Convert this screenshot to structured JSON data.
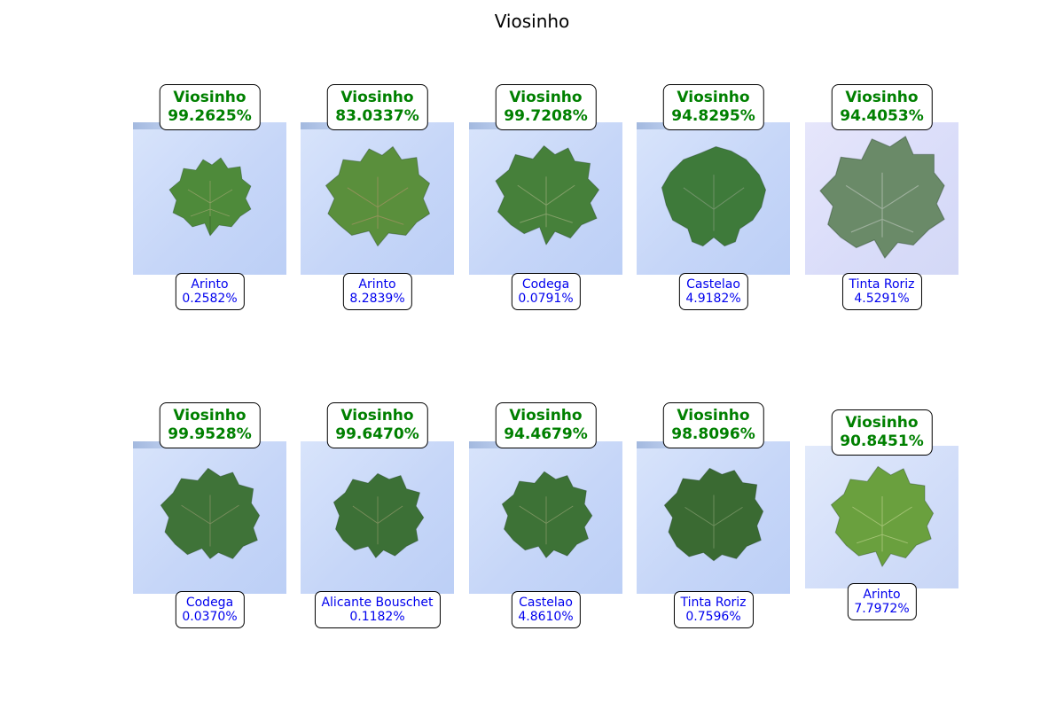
{
  "title": "Viosinho",
  "cells": [
    {
      "pred_label": "Viosinho",
      "pred_pct": "99.2625%",
      "alt_label": "Arinto",
      "alt_pct": "0.2582%",
      "leaf_color": "#4e8a3a"
    },
    {
      "pred_label": "Viosinho",
      "pred_pct": "83.0337%",
      "alt_label": "Arinto",
      "alt_pct": "8.2839%",
      "leaf_color": "#5a8f3c"
    },
    {
      "pred_label": "Viosinho",
      "pred_pct": "99.7208%",
      "alt_label": "Codega",
      "alt_pct": "0.0791%",
      "leaf_color": "#46803a"
    },
    {
      "pred_label": "Viosinho",
      "pred_pct": "94.8295%",
      "alt_label": "Castelao",
      "alt_pct": "4.9182%",
      "leaf_color": "#3e7a3a"
    },
    {
      "pred_label": "Viosinho",
      "pred_pct": "94.4053%",
      "alt_label": "Tinta Roriz",
      "alt_pct": "4.5291%",
      "leaf_color": "#6a8a68"
    },
    {
      "pred_label": "Viosinho",
      "pred_pct": "99.9528%",
      "alt_label": "Codega",
      "alt_pct": "0.0370%",
      "leaf_color": "#3f7338"
    },
    {
      "pred_label": "Viosinho",
      "pred_pct": "99.6470%",
      "alt_label": "Alicante Bouschet",
      "alt_pct": "0.1182%",
      "leaf_color": "#3c7036"
    },
    {
      "pred_label": "Viosinho",
      "pred_pct": "94.4679%",
      "alt_label": "Castelao",
      "alt_pct": "4.8610%",
      "leaf_color": "#3d7236"
    },
    {
      "pred_label": "Viosinho",
      "pred_pct": "98.8096%",
      "alt_label": "Tinta Roriz",
      "alt_pct": "0.7596%",
      "leaf_color": "#3a6a32"
    },
    {
      "pred_label": "Viosinho",
      "pred_pct": "90.8451%",
      "alt_label": "Arinto",
      "alt_pct": "7.7972%",
      "leaf_color": "#6aa03e"
    }
  ]
}
